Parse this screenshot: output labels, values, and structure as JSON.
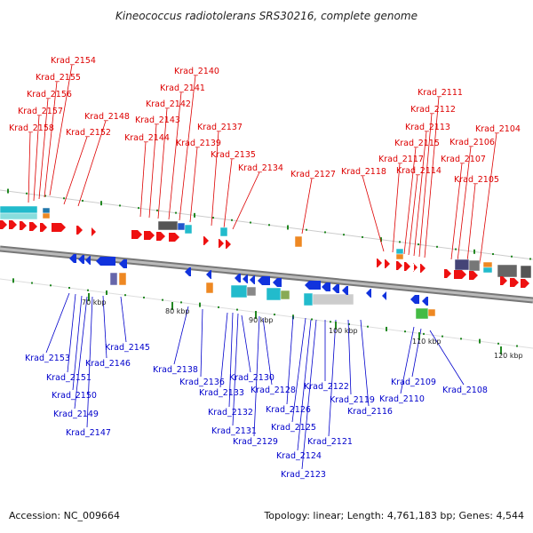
{
  "title": "Kineococcus radiotolerans SRS30216, complete genome",
  "footer": {
    "accession": "Accession: NC_009664",
    "summary": "Topology: linear; Length: 4,761,183 bp; Genes: 4,544"
  },
  "scale_labels": [
    "70 kbp",
    "80 kbp",
    "90 kbp",
    "100 kbp",
    "110 kbp",
    "120 kbp"
  ],
  "forward_genes": [
    "Krad_2158",
    "Krad_2157",
    "Krad_2156",
    "Krad_2155",
    "Krad_2154",
    "Krad_2152",
    "Krad_2148",
    "Krad_2144",
    "Krad_2143",
    "Krad_2142",
    "Krad_2141",
    "Krad_2140",
    "Krad_2139",
    "Krad_2137",
    "Krad_2135",
    "Krad_2134",
    "Krad_2127",
    "Krad_2118",
    "Krad_2117",
    "Krad_2115",
    "Krad_2114",
    "Krad_2113",
    "Krad_2112",
    "Krad_2111",
    "Krad_2107",
    "Krad_2106",
    "Krad_2105",
    "Krad_2104"
  ],
  "reverse_genes": [
    "Krad_2153",
    "Krad_2151",
    "Krad_2150",
    "Krad_2149",
    "Krad_2147",
    "Krad_2146",
    "Krad_2145",
    "Krad_2138",
    "Krad_2136",
    "Krad_2133",
    "Krad_2132",
    "Krad_2131",
    "Krad_2130",
    "Krad_2129",
    "Krad_2128",
    "Krad_2126",
    "Krad_2125",
    "Krad_2124",
    "Krad_2123",
    "Krad_2122",
    "Krad_2121",
    "Krad_2119",
    "Krad_2116",
    "Krad_2110",
    "Krad_2109",
    "Krad_2108"
  ],
  "colors": {
    "forward": "#ee1111",
    "reverse": "#1133dd",
    "backbone": "#999999",
    "tick": "#228822",
    "forward_label": "#dd0000",
    "reverse_label": "#0000cc"
  }
}
